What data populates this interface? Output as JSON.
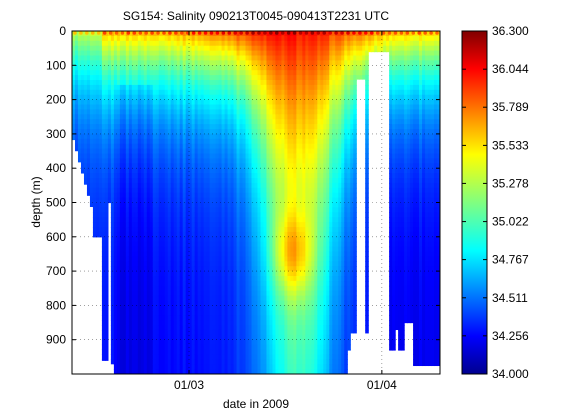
{
  "chart_data": {
    "type": "heatmap",
    "title": "SG154: Salinity 090213T0045-090413T2231 UTC",
    "xlabel": "date in 2009",
    "ylabel": "depth (m)",
    "x_ticks": [
      "01/03",
      "01/04"
    ],
    "y_ticks": [
      "0",
      "100",
      "200",
      "300",
      "400",
      "500",
      "600",
      "700",
      "800",
      "900"
    ],
    "ylim": [
      0,
      1000
    ],
    "y_reversed": true,
    "grid": true,
    "colormap": "jet",
    "colorbar": {
      "min": 34.0,
      "max": 36.3,
      "tick_labels": [
        "34.000",
        "34.256",
        "34.511",
        "34.767",
        "35.022",
        "35.278",
        "35.533",
        "35.789",
        "36.044",
        "36.300"
      ]
    },
    "features": {
      "surface_salinity_range": [
        35.3,
        36.1
      ],
      "deep_salinity_range": [
        34.3,
        34.6
      ],
      "high_salinity_core_depth_range": [
        550,
        750
      ],
      "data_gaps": [
        "late Feb bottom",
        "mid-March dives",
        "late March"
      ]
    }
  }
}
